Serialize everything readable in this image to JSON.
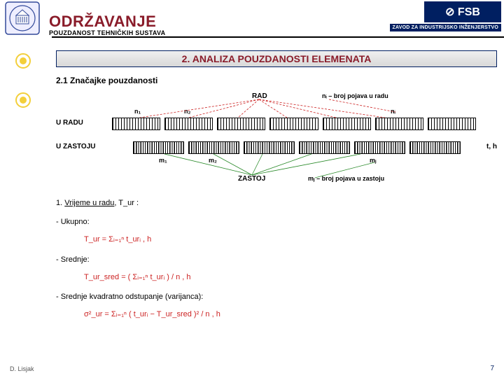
{
  "colors": {
    "navy": "#001f61",
    "accent": "#8a1c2a",
    "yellow": "#f3cf3a",
    "red": "#c22",
    "green": "#2a8a2a",
    "hr": "#000000",
    "seal_border": "#334a9a"
  },
  "header": {
    "main_title": "ODRŽAVANJE",
    "sub_title": "POUZDANOST TEHNIČKIH SUSTAVA",
    "logo_text": "⊘ FSB",
    "dept": "ZAVOD ZA INDUSTRIJSKO INŽENJERSTVO"
  },
  "section": {
    "band_title": "2. ANALIZA POUZDANOSTI ELEMENATA",
    "subsection": "2.1 Značajke pouzdanosti"
  },
  "diagram": {
    "rad_label": "RAD",
    "zastoj_label": "ZASTOJ",
    "u_radu": "U RADU",
    "u_zastoju": "U ZASTOJU",
    "axis_label": "t, h",
    "n_labels": [
      "n₁",
      "n₂",
      "nᵢ"
    ],
    "m_labels": [
      "m₁",
      "m₂",
      "mⱼ"
    ],
    "n_note": "nᵢ – broj pojava u radu",
    "m_note": "mⱼ – broj pojava u zastoju",
    "n_segments": 7,
    "m_segments": 6
  },
  "content": {
    "item1_lead": "1. ",
    "item1_ul": "Vrijeme u radu",
    "item1_tail": ", T_ur :",
    "bullet_ukupno": "- Ukupno:",
    "formula_ukupno": "T_ur = Σᵢ₌₁ⁿ t_urᵢ , h",
    "bullet_srednje": "- Srednje:",
    "formula_srednje": "T_ur_sred = ( Σᵢ₌₁ⁿ t_urᵢ ) / n , h",
    "bullet_var": "- Srednje kvadratno odstupanje (varijanca):",
    "formula_var": "σ²_ur = Σᵢ₌₁ⁿ ( t_urᵢ − T_ur_sred )² / n , h"
  },
  "footer": {
    "left": "D. Lisjak",
    "page": "7"
  },
  "style": {
    "title_fontsize": 22,
    "band_fontsize": 14,
    "body_fontsize": 11,
    "diagram_top_track_bg": "hatched",
    "diagram_bottom_track_bg": "hatched-dense"
  }
}
